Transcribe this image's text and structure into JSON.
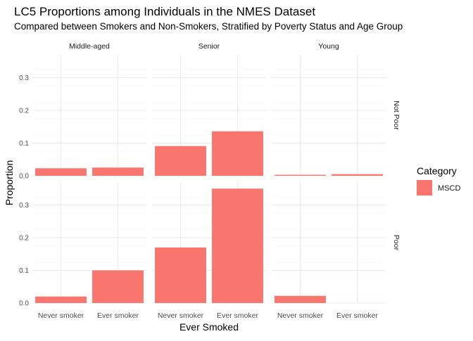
{
  "chart_data": {
    "type": "bar",
    "title": "LC5 Proportions among Individuals in the NMES Dataset",
    "subtitle": "Compared between Smokers and Non-Smokers, Stratified by Poverty Status and Age Group",
    "xlabel": "Ever Smoked",
    "ylabel": "Proportion",
    "categories": [
      "Never smoker",
      "Ever smoker"
    ],
    "ylim": [
      0,
      0.37
    ],
    "yticks": [
      "0.0",
      "0.1",
      "0.2",
      "0.3"
    ],
    "grid": true,
    "facet_columns": [
      "Middle-aged",
      "Senior",
      "Young"
    ],
    "facet_rows": [
      "Not Poor",
      "Poor"
    ],
    "legend": {
      "title": "Category",
      "position": "right",
      "items": [
        {
          "name": "MSCD",
          "color": "#F8766D"
        }
      ]
    },
    "panels": [
      {
        "row": "Not Poor",
        "column": "Middle-aged",
        "values": [
          0.023,
          0.025
        ]
      },
      {
        "row": "Not Poor",
        "column": "Senior",
        "values": [
          0.091,
          0.136
        ]
      },
      {
        "row": "Not Poor",
        "column": "Young",
        "values": [
          0.003,
          0.005
        ]
      },
      {
        "row": "Poor",
        "column": "Middle-aged",
        "values": [
          0.02,
          0.1
        ]
      },
      {
        "row": "Poor",
        "column": "Senior",
        "values": [
          0.17,
          0.35
        ]
      },
      {
        "row": "Poor",
        "column": "Young",
        "values": [
          0.022,
          0
        ]
      }
    ],
    "colors": {
      "bar": "#F8766D",
      "grid_major": "#EBEBEB",
      "grid_minor": "#F5F5F5",
      "text": "#1A1A1A",
      "axis_text": "#4D4D4D"
    }
  }
}
